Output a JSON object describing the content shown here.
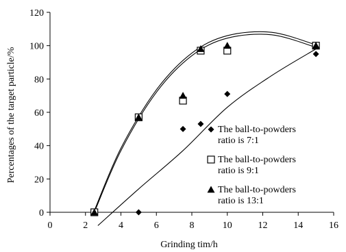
{
  "chart_data": {
    "type": "scatter",
    "xlabel": "Grinding tim/h",
    "ylabel": "Percentages of the target particle/%",
    "xlim": [
      0,
      16
    ],
    "ylim": [
      0,
      120
    ],
    "xticks": [
      0,
      2,
      4,
      6,
      8,
      10,
      12,
      14,
      16
    ],
    "yticks": [
      0,
      20,
      40,
      60,
      80,
      100,
      120
    ],
    "grid": false,
    "legend_position": "right-center",
    "series": [
      {
        "name": "The ball-to-powders ratio is 7:1",
        "legend_lines": [
          "The ball-to-powders",
          "ratio is 7:1"
        ],
        "marker": "diamond",
        "x": [
          5,
          7.5,
          8.5,
          10,
          15
        ],
        "y": [
          0,
          50,
          53,
          71,
          95
        ],
        "trend": {
          "x_start": 2.7,
          "x_end": 15,
          "points": [
            [
              2.7,
              -8
            ],
            [
              5,
              14
            ],
            [
              7.5,
              37
            ],
            [
              10,
              63
            ],
            [
              12.5,
              82
            ],
            [
              15,
              98
            ]
          ]
        }
      },
      {
        "name": "The ball-to-powders ratio is 9:1",
        "legend_lines": [
          "The ball-to-powders",
          "ratio is 9:1"
        ],
        "marker": "square-open",
        "x": [
          2.5,
          5,
          7.5,
          8.5,
          10,
          15
        ],
        "y": [
          0,
          57,
          67,
          97,
          97,
          100
        ],
        "trend": {
          "points": [
            [
              2.5,
              0
            ],
            [
              4,
              37
            ],
            [
              6,
              72
            ],
            [
              8,
              94
            ],
            [
              10,
              104.5
            ],
            [
              12.5,
              106.5
            ],
            [
              15,
              99
            ]
          ]
        }
      },
      {
        "name": "The ball-to-powders ratio is 13:1",
        "legend_lines": [
          "The ball-to-powders",
          "ratio is 13:1"
        ],
        "marker": "triangle",
        "x": [
          2.5,
          5,
          7.5,
          8.5,
          10,
          15
        ],
        "y": [
          0,
          57,
          70,
          98,
          100,
          100
        ],
        "trend": {
          "points": [
            [
              2.5,
              1
            ],
            [
              4,
              38.5
            ],
            [
              6,
              73.5
            ],
            [
              8,
              95.5
            ],
            [
              10,
              106
            ],
            [
              12.5,
              108
            ],
            [
              15,
              100.5
            ]
          ]
        }
      }
    ]
  }
}
